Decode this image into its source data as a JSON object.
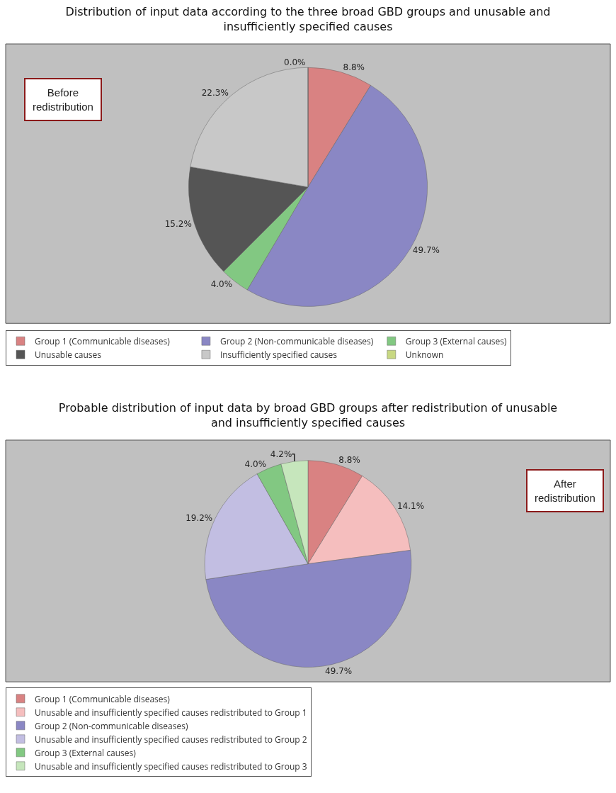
{
  "chart_data": [
    {
      "type": "pie",
      "title": "Distribution of input data according to the three broad GBD groups and unusable and insufficiently specified causes",
      "categories": [
        "Group 1 (Communicable diseases)",
        "Group 2 (Non-communicable diseases)",
        "Group 3 (External causes)",
        "Unusable causes",
        "Insufficiently specified causes",
        "Unknown"
      ],
      "values": [
        8.8,
        49.7,
        4.0,
        15.2,
        22.3,
        0.0
      ],
      "value_labels": [
        "8.8%",
        "49.7%",
        "4.0%",
        "15.2%",
        "22.3%",
        "0.0%"
      ],
      "colors": [
        "#d98282",
        "#8a87c4",
        "#82c882",
        "#555555",
        "#c8c8c8",
        "#c8d882"
      ],
      "legend": "bottom",
      "annotations": [
        "Before redistribution"
      ]
    },
    {
      "type": "pie",
      "title": "Probable distribution of input data by broad GBD groups after redistribution of unusable and insufficiently specified causes",
      "categories": [
        "Group 1 (Communicable diseases)",
        "Unusable and insufficiently specified causes redistributed to Group 1",
        "Group 2 (Non-communicable diseases)",
        "Unusable and insufficiently specified causes redistributed to Group 2",
        "Group 3 (External causes)",
        "Unusable and insufficiently specified causes redistributed to Group 3"
      ],
      "values": [
        8.8,
        14.1,
        49.7,
        19.2,
        4.0,
        4.2
      ],
      "value_labels": [
        "8.8%",
        "14.1%",
        "49.7%",
        "19.2%",
        "4.0%",
        "4.2%"
      ],
      "colors": [
        "#d98282",
        "#f5bebe",
        "#8a87c4",
        "#c2bee2",
        "#82c882",
        "#c6e6bc"
      ],
      "legend": "bottom",
      "annotations": [
        "After redistribution"
      ]
    }
  ]
}
